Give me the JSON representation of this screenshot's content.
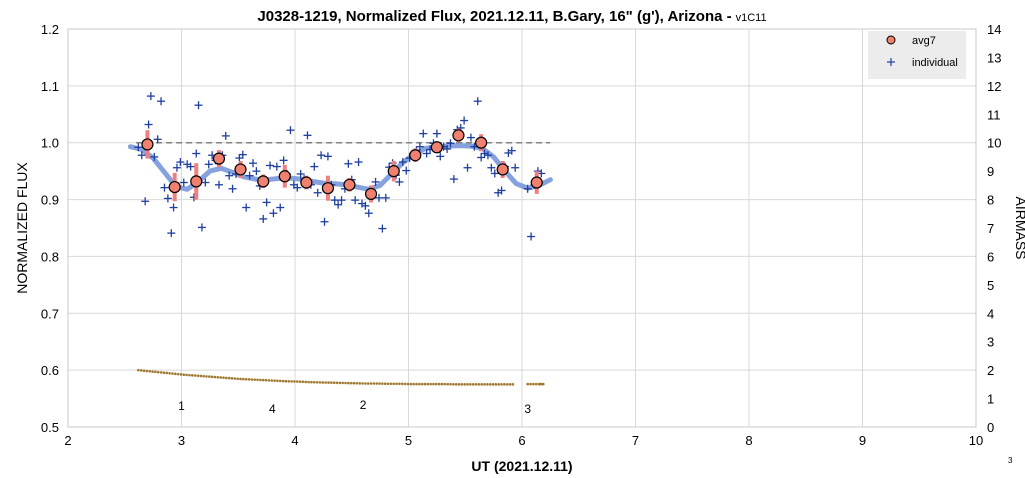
{
  "chart_data": {
    "type": "scatter",
    "title": "J0328-1219, Normalized Flux, 2021.12.11, B.Gary, 16\" (g'), Arizona -",
    "title_suffix": "v1C11",
    "xlabel": "UT (2021.12.11)",
    "ylabel": "NORMALIZED FLUX",
    "y2label": "AIRMASS",
    "xlim": [
      2,
      10
    ],
    "ylim": [
      0.5,
      1.2
    ],
    "y2lim": [
      0,
      14
    ],
    "x_ticks": [
      "2",
      "3",
      "4",
      "5",
      "6",
      "7",
      "8",
      "9",
      "10"
    ],
    "y_ticks": [
      "0.5",
      "0.6",
      "0.7",
      "0.8",
      "0.9",
      "1.0",
      "1.1",
      "1.2"
    ],
    "y2_ticks": [
      "0",
      "1",
      "2",
      "3",
      "4",
      "5",
      "6",
      "7",
      "8",
      "9",
      "10",
      "11",
      "12",
      "13",
      "14"
    ],
    "grid": true,
    "legend_position": "top-right",
    "reference_line": {
      "y": 1.0,
      "x_range": [
        2.6,
        6.25
      ]
    },
    "colors": {
      "avg7_fill": "#f08070",
      "avg7_err": "#f08080",
      "individual": "#1f3fa0",
      "model": "#7090d8",
      "airmass": "#a07830",
      "reference": "#808080"
    },
    "series": [
      {
        "name": "avg7",
        "x": [
          2.7,
          2.94,
          3.13,
          3.33,
          3.52,
          3.72,
          3.91,
          4.1,
          4.29,
          4.48,
          4.67,
          4.87,
          5.06,
          5.25,
          5.44,
          5.64,
          5.83,
          6.13
        ],
        "y": [
          0.997,
          0.922,
          0.932,
          0.972,
          0.953,
          0.932,
          0.941,
          0.93,
          0.92,
          0.926,
          0.91,
          0.95,
          0.978,
          0.992,
          1.013,
          1.0,
          0.953,
          0.93
        ],
        "err": [
          0.025,
          0.025,
          0.032,
          0.015,
          0.015,
          0.012,
          0.02,
          0.012,
          0.022,
          0.012,
          0.015,
          0.018,
          0.012,
          0.01,
          0.012,
          0.015,
          0.015,
          0.02
        ]
      },
      {
        "name": "individual",
        "x": [
          2.62,
          2.65,
          2.68,
          2.71,
          2.73,
          2.76,
          2.79,
          2.82,
          2.85,
          2.88,
          2.91,
          2.93,
          2.96,
          2.99,
          3.02,
          3.05,
          3.08,
          3.11,
          3.13,
          3.15,
          3.18,
          3.21,
          3.24,
          3.27,
          3.3,
          3.33,
          3.36,
          3.39,
          3.42,
          3.45,
          3.48,
          3.51,
          3.54,
          3.57,
          3.6,
          3.63,
          3.66,
          3.69,
          3.72,
          3.75,
          3.78,
          3.81,
          3.84,
          3.87,
          3.9,
          3.93,
          3.96,
          3.99,
          4.02,
          4.05,
          4.08,
          4.11,
          4.14,
          4.17,
          4.2,
          4.23,
          4.26,
          4.29,
          4.32,
          4.35,
          4.38,
          4.41,
          4.44,
          4.47,
          4.5,
          4.53,
          4.56,
          4.59,
          4.62,
          4.65,
          4.68,
          4.71,
          4.74,
          4.77,
          4.8,
          4.83,
          4.86,
          4.89,
          4.92,
          4.95,
          4.98,
          5.01,
          5.04,
          5.07,
          5.1,
          5.13,
          5.16,
          5.19,
          5.22,
          5.25,
          5.28,
          5.31,
          5.34,
          5.37,
          5.4,
          5.43,
          5.46,
          5.49,
          5.52,
          5.55,
          5.58,
          5.61,
          5.64,
          5.67,
          5.7,
          5.73,
          5.76,
          5.79,
          5.82,
          5.85,
          5.88,
          5.91,
          5.94,
          6.05,
          6.08,
          6.11,
          6.14,
          6.17
        ],
        "y": [
          0.992,
          0.978,
          0.897,
          1.032,
          1.082,
          0.975,
          1.006,
          1.073,
          0.921,
          0.902,
          0.841,
          0.886,
          0.956,
          0.966,
          0.93,
          0.962,
          0.958,
          0.904,
          0.981,
          1.066,
          0.851,
          0.93,
          0.962,
          0.978,
          0.969,
          0.926,
          0.978,
          1.012,
          0.942,
          0.919,
          0.945,
          0.973,
          0.979,
          0.886,
          0.942,
          0.964,
          0.95,
          0.924,
          0.866,
          0.895,
          0.96,
          0.876,
          0.958,
          0.886,
          0.969,
          0.945,
          1.022,
          0.926,
          0.921,
          0.945,
          0.936,
          1.013,
          0.926,
          0.958,
          0.912,
          0.978,
          0.861,
          0.976,
          0.926,
          0.899,
          0.891,
          0.899,
          0.919,
          0.963,
          0.935,
          0.899,
          0.966,
          0.893,
          0.889,
          0.876,
          0.915,
          0.931,
          0.903,
          0.849,
          0.903,
          0.957,
          0.964,
          0.943,
          0.931,
          0.966,
          0.951,
          0.973,
          0.981,
          0.986,
          0.993,
          1.016,
          0.981,
          0.988,
          0.999,
          1.016,
          0.976,
          0.993,
          0.989,
          0.999,
          0.936,
          1.023,
          1.026,
          1.039,
          0.956,
          1.009,
          0.993,
          1.073,
          0.974,
          0.981,
          0.978,
          0.956,
          0.946,
          0.912,
          0.916,
          0.958,
          0.982,
          0.986,
          0.956,
          0.919,
          0.835,
          0.926,
          0.95,
          0.946
        ]
      },
      {
        "name": "model",
        "x": [
          2.55,
          2.65,
          2.75,
          2.85,
          2.95,
          3.05,
          3.15,
          3.25,
          3.35,
          3.45,
          3.55,
          3.65,
          3.75,
          3.85,
          3.95,
          4.05,
          4.15,
          4.25,
          4.35,
          4.45,
          4.55,
          4.65,
          4.75,
          4.85,
          4.95,
          5.05,
          5.15,
          5.25,
          5.35,
          5.45,
          5.55,
          5.65,
          5.75,
          5.85,
          5.95,
          6.05,
          6.15,
          6.25
        ],
        "y": [
          0.993,
          0.988,
          0.973,
          0.948,
          0.923,
          0.918,
          0.932,
          0.95,
          0.955,
          0.948,
          0.94,
          0.936,
          0.935,
          0.937,
          0.938,
          0.936,
          0.932,
          0.929,
          0.928,
          0.926,
          0.922,
          0.918,
          0.925,
          0.945,
          0.965,
          0.98,
          0.99,
          0.993,
          0.994,
          0.995,
          0.994,
          0.99,
          0.975,
          0.95,
          0.928,
          0.92,
          0.925,
          0.935
        ]
      },
      {
        "name": "airmass",
        "axis": "right",
        "x": [
          2.62,
          2.72,
          2.82,
          2.92,
          3.02,
          3.12,
          3.22,
          3.32,
          3.42,
          3.52,
          3.62,
          3.72,
          3.82,
          3.92,
          4.02,
          4.12,
          4.22,
          4.32,
          4.42,
          4.52,
          4.62,
          4.72,
          4.82,
          4.92,
          5.02,
          5.12,
          5.22,
          5.32,
          5.42,
          5.52,
          5.62,
          5.72,
          5.82,
          5.92,
          6.05,
          6.15,
          6.2
        ],
        "y": [
          2.0,
          1.96,
          1.92,
          1.88,
          1.84,
          1.81,
          1.78,
          1.75,
          1.72,
          1.69,
          1.67,
          1.65,
          1.63,
          1.61,
          1.6,
          1.58,
          1.57,
          1.56,
          1.55,
          1.54,
          1.53,
          1.53,
          1.52,
          1.52,
          1.51,
          1.51,
          1.51,
          1.51,
          1.5,
          1.5,
          1.5,
          1.5,
          1.5,
          1.5,
          1.51,
          1.51,
          1.51
        ]
      }
    ],
    "annotations": [
      {
        "text": "1",
        "x": 3.0,
        "y": 0.53
      },
      {
        "text": "4",
        "x": 3.8,
        "y": 0.525
      },
      {
        "text": "2",
        "x": 4.6,
        "y": 0.532
      },
      {
        "text": "3",
        "x": 6.05,
        "y": 0.525
      }
    ],
    "corner_note": "3"
  }
}
